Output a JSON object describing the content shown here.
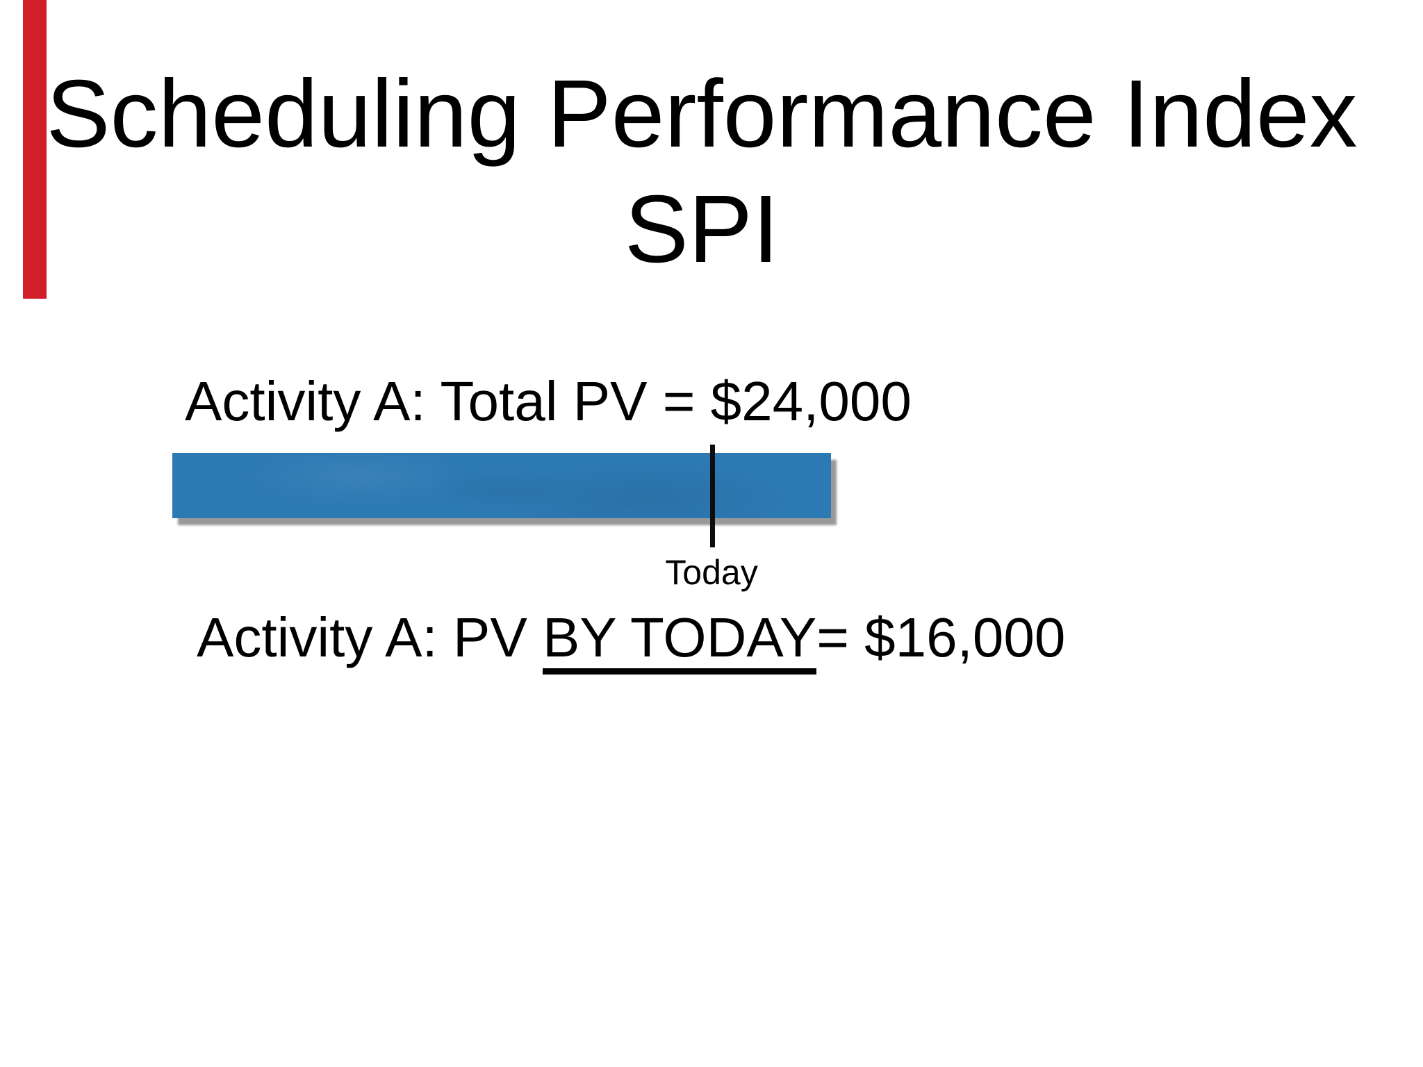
{
  "slide": {
    "title_line1": "Scheduling Performance Index",
    "title_line2": "SPI",
    "activity_total_pv": "Activity A: Total PV = $24,000",
    "activity_by_today_prefix": "Activity A: PV ",
    "activity_by_today_underlined": "BY TODAY",
    "activity_by_today_suffix": "= $16,000",
    "today_label": "Today",
    "colors": {
      "background": "#ffffff",
      "text": "#000000",
      "bar_blue": "#2d79b4",
      "bar_shadow_gray": "#808080",
      "accent_red": "#d21e2b"
    }
  }
}
